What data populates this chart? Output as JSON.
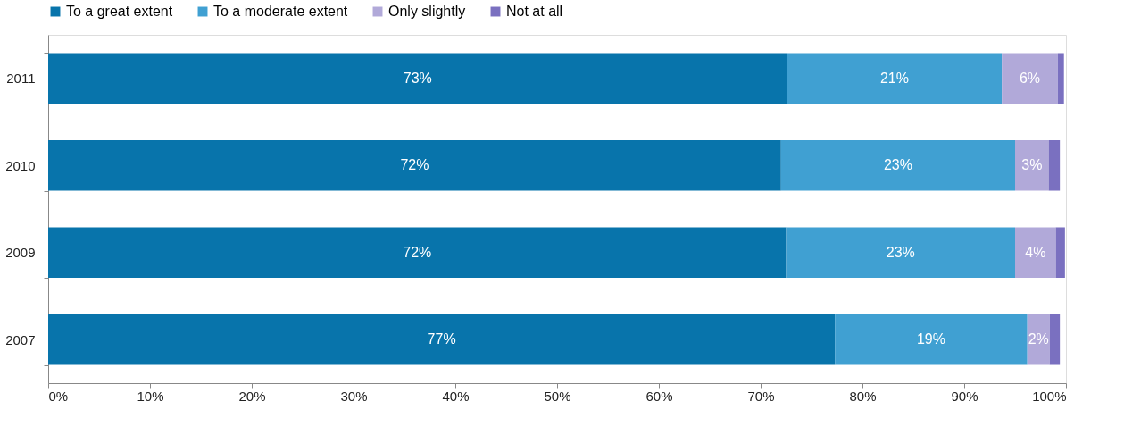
{
  "chart_data": {
    "type": "bar",
    "orientation": "horizontal",
    "stacked": true,
    "categories": [
      "2011",
      "2010",
      "2009",
      "2007"
    ],
    "series": [
      {
        "name": "To a great extent",
        "color": "#0874ab",
        "values": [
          72.6,
          72.0,
          72.5,
          77.3
        ],
        "value_labels": [
          "73%",
          "72%",
          "72%",
          "77%"
        ]
      },
      {
        "name": "To a moderate extent",
        "color": "#40a0d2",
        "values": [
          21.1,
          23.0,
          22.5,
          18.9
        ],
        "value_labels": [
          "21%",
          "23%",
          "23%",
          "19%"
        ]
      },
      {
        "name": "Only slightly",
        "color": "#b1a9d9",
        "values": [
          5.5,
          3.3,
          4.0,
          2.2
        ],
        "value_labels": [
          "6%",
          "3%",
          "4%",
          "2%"
        ]
      },
      {
        "name": "Not at all",
        "color": "#7a70c0",
        "values": [
          0.6,
          1.1,
          0.9,
          1.0
        ],
        "value_labels": [
          null,
          null,
          null,
          null
        ]
      }
    ],
    "xlim": [
      0,
      100
    ],
    "xticks": [
      {
        "value": 0,
        "label": "0%"
      },
      {
        "value": 10,
        "label": "10%"
      },
      {
        "value": 20,
        "label": "20%"
      },
      {
        "value": 30,
        "label": "30%"
      },
      {
        "value": 40,
        "label": "40%"
      },
      {
        "value": 50,
        "label": "50%"
      },
      {
        "value": 60,
        "label": "60%"
      },
      {
        "value": 70,
        "label": "70%"
      },
      {
        "value": 80,
        "label": "80%"
      },
      {
        "value": 90,
        "label": "90%"
      },
      {
        "value": 100,
        "label": "100%"
      }
    ],
    "legend": "top",
    "grid": false
  }
}
